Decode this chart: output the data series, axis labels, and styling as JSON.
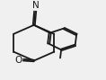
{
  "bg_color": "#f0f0f0",
  "line_color": "#1a1a1a",
  "line_width": 1.3
}
